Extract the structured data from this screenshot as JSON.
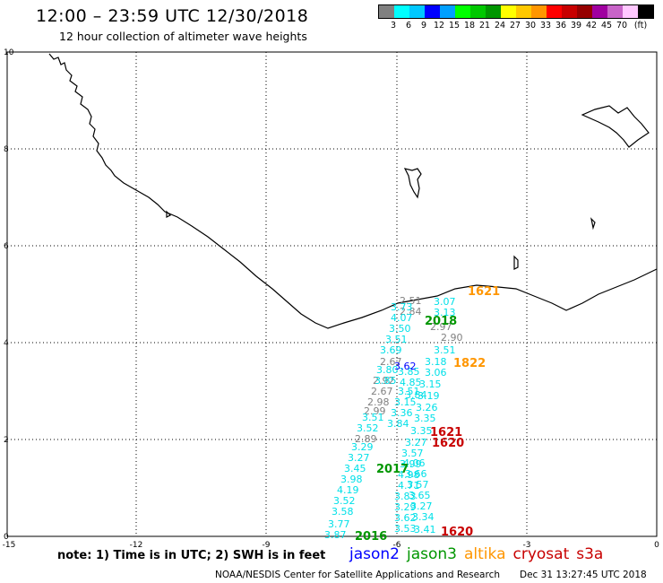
{
  "header": {
    "title": "12:00  –  23:59 UTC 12/30/2018",
    "subtitle": "12 hour collection of altimeter wave heights"
  },
  "legend": {
    "colors": [
      "#808080",
      "#00ffff",
      "#00c8ff",
      "#0000ff",
      "#00a0ff",
      "#00ff00",
      "#00c800",
      "#009600",
      "#ffff00",
      "#ffc800",
      "#ff9600",
      "#ff0000",
      "#c80000",
      "#960000",
      "#a000a0",
      "#c864c8",
      "#ffc8ff",
      "#000000"
    ],
    "labels": [
      "3",
      "6",
      "9",
      "12",
      "15",
      "18",
      "21",
      "24",
      "27",
      "30",
      "33",
      "36",
      "39",
      "42",
      "45",
      "70",
      "(ft)"
    ]
  },
  "axes": {
    "x_ticks": [
      "-15",
      "-12",
      "-9",
      "-6",
      "-3",
      "0"
    ],
    "y_ticks": [
      "0",
      "2",
      "4",
      "6",
      "8",
      "10"
    ]
  },
  "tracks": {
    "gray": {
      "color": "#808080",
      "values": [
        "2.51",
        "2.84",
        "2.97",
        "2.90",
        "2.67",
        "2.92",
        "2.67",
        "2.98",
        "2.99",
        "2.89"
      ]
    },
    "cyan": {
      "color": "#00e0e8",
      "values": [
        "3.07",
        "3.13",
        "3.51",
        "3.18",
        "3.06",
        "3.15",
        "3.19",
        "3.26",
        "3.35",
        "3.35",
        "3.27",
        "3.57",
        "3.99",
        "4.98",
        "4.71",
        "3.83",
        "3.29",
        "3.62",
        "3.53",
        "4.06",
        "3.66",
        "3.57",
        "3.65",
        "3.27",
        "3.34",
        "3.41",
        "3.73",
        "4.07",
        "3.50",
        "3.51",
        "3.69",
        "3.80",
        "3.85",
        "3.51",
        "3.15",
        "3.36",
        "3.84",
        "3.51",
        "3.52",
        "3.29",
        "3.27",
        "3.45",
        "3.98",
        "4.19",
        "3.52",
        "3.58",
        "3.77",
        "3.87",
        "3.85",
        "4.85",
        "3.84"
      ]
    },
    "blue": {
      "color": "#0000ff",
      "values": [
        "3.62"
      ]
    },
    "labels": [
      {
        "text": "1621",
        "color": "#ff9600"
      },
      {
        "text": "2018",
        "color": "#009600"
      },
      {
        "text": "1822",
        "color": "#ff9600"
      },
      {
        "text": "1621",
        "color": "#c80000"
      },
      {
        "text": "1620",
        "color": "#c80000"
      },
      {
        "text": "2017",
        "color": "#009600"
      },
      {
        "text": "2016",
        "color": "#009600"
      },
      {
        "text": "1620",
        "color": "#c80000"
      }
    ]
  },
  "footer": {
    "note": "note:  1) Time is in UTC;  2) SWH is in feet",
    "satellites": [
      {
        "name": "jason2",
        "color": "#0000ff"
      },
      {
        "name": "jason3",
        "color": "#009600"
      },
      {
        "name": "altika",
        "color": "#ff9600"
      },
      {
        "name": "cryosat",
        "color": "#c80000"
      },
      {
        "name": "s3a",
        "color": "#c80000"
      }
    ],
    "credit": "NOAA/NESDIS Center for Satellite Applications and Research",
    "timestamp": "Dec 31 13:27:45 UTC 2018"
  }
}
